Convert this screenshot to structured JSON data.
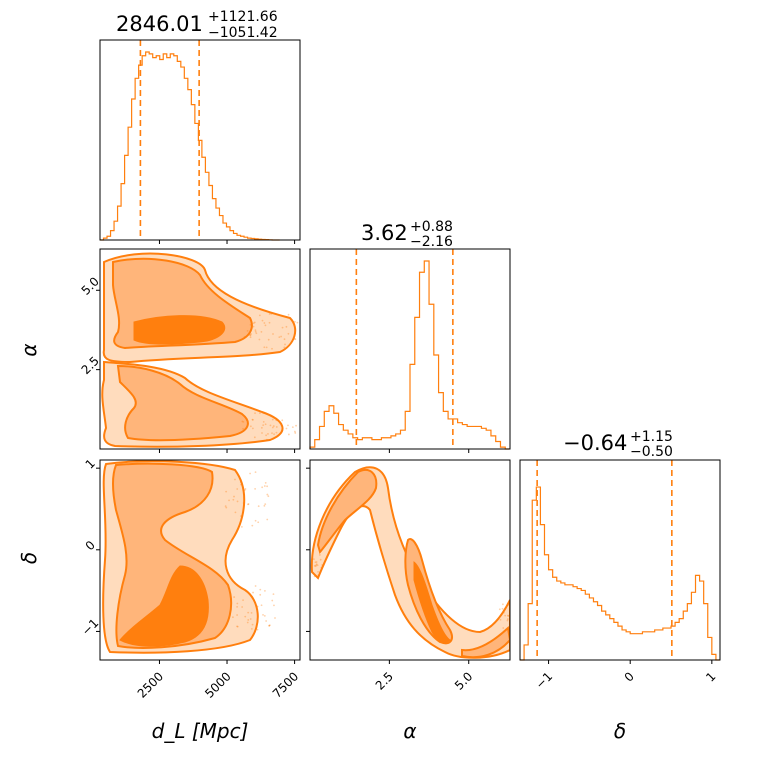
{
  "colors": {
    "accent": "#ff7f0e",
    "fill_light": "#ffdcbd",
    "fill_mid": "#ffb57a",
    "fill_dark": "#ff7f0e"
  },
  "chart_data": {
    "type": "corner",
    "params": [
      {
        "symbol": "d_L",
        "label": "d_L [Mpc]",
        "median": "2846.01",
        "plus": "+1121.66",
        "minus": "−1051.42",
        "range": [
          300,
          7700
        ],
        "ticks": [
          2500,
          5000,
          7500
        ],
        "tick_labels": [
          "2500",
          "5000",
          "7500"
        ],
        "quantiles": [
          1795,
          3968
        ]
      },
      {
        "symbol": "α",
        "label": "α",
        "median": "3.62",
        "plus": "+0.88",
        "minus": "−2.16",
        "range": [
          0,
          6.3
        ],
        "ticks": [
          2.5,
          5.0
        ],
        "tick_labels": [
          "2.5",
          "5.0"
        ],
        "quantiles": [
          1.46,
          4.5
        ]
      },
      {
        "symbol": "δ",
        "label": "δ",
        "median": "−0.64",
        "plus": "+1.15",
        "minus": "−0.50",
        "range": [
          -1.35,
          1.1
        ],
        "ticks": [
          -1,
          0,
          1
        ],
        "tick_labels": [
          "−1",
          "0",
          "1"
        ],
        "quantiles": [
          -1.14,
          0.51
        ]
      }
    ],
    "hist_dL": {
      "x": [
        300,
        430,
        560,
        690,
        820,
        950,
        1080,
        1210,
        1340,
        1470,
        1600,
        1730,
        1860,
        1990,
        2120,
        2250,
        2380,
        2510,
        2640,
        2770,
        2900,
        3030,
        3160,
        3290,
        3420,
        3550,
        3680,
        3810,
        3940,
        4070,
        4200,
        4330,
        4460,
        4590,
        4720,
        4850,
        4980,
        5110,
        5240,
        5370,
        5500,
        5630,
        5760,
        5890,
        6020,
        6150,
        6280,
        6410,
        6540,
        6670,
        6800
      ],
      "y": [
        0,
        0.01,
        0.02,
        0.05,
        0.1,
        0.18,
        0.3,
        0.45,
        0.6,
        0.75,
        0.86,
        0.93,
        0.98,
        1.0,
        0.99,
        0.97,
        0.98,
        0.96,
        0.99,
        0.97,
        0.99,
        0.98,
        0.95,
        0.92,
        0.86,
        0.8,
        0.72,
        0.62,
        0.53,
        0.44,
        0.36,
        0.29,
        0.22,
        0.17,
        0.13,
        0.09,
        0.07,
        0.05,
        0.035,
        0.025,
        0.02,
        0.015,
        0.01,
        0.008,
        0.006,
        0.004,
        0.003,
        0.002,
        0.001,
        0,
        0
      ]
    },
    "hist_alpha": {
      "x": [
        0,
        0.15,
        0.3,
        0.45,
        0.6,
        0.75,
        0.9,
        1.05,
        1.2,
        1.35,
        1.5,
        1.65,
        1.8,
        1.95,
        2.1,
        2.25,
        2.4,
        2.55,
        2.7,
        2.85,
        3.0,
        3.15,
        3.3,
        3.45,
        3.6,
        3.75,
        3.9,
        4.05,
        4.2,
        4.35,
        4.5,
        4.65,
        4.8,
        4.95,
        5.1,
        5.25,
        5.4,
        5.55,
        5.7,
        5.85,
        6.0,
        6.15
      ],
      "y": [
        0.01,
        0.05,
        0.12,
        0.2,
        0.23,
        0.19,
        0.13,
        0.1,
        0.08,
        0.06,
        0.05,
        0.06,
        0.06,
        0.05,
        0.05,
        0.06,
        0.06,
        0.07,
        0.08,
        0.1,
        0.2,
        0.45,
        0.7,
        0.94,
        1.0,
        0.77,
        0.5,
        0.3,
        0.2,
        0.16,
        0.16,
        0.14,
        0.13,
        0.12,
        0.12,
        0.12,
        0.11,
        0.1,
        0.07,
        0.04,
        0.01,
        0
      ]
    },
    "hist_delta": {
      "x": [
        -1.35,
        -1.3,
        -1.25,
        -1.2,
        -1.15,
        -1.1,
        -1.05,
        -1.0,
        -0.95,
        -0.9,
        -0.85,
        -0.8,
        -0.75,
        -0.7,
        -0.65,
        -0.6,
        -0.55,
        -0.5,
        -0.45,
        -0.4,
        -0.35,
        -0.3,
        -0.25,
        -0.2,
        -0.15,
        -0.1,
        -0.05,
        0,
        0.05,
        0.1,
        0.15,
        0.2,
        0.25,
        0.3,
        0.35,
        0.4,
        0.45,
        0.5,
        0.55,
        0.6,
        0.65,
        0.7,
        0.75,
        0.8,
        0.85,
        0.9,
        0.95,
        1.0,
        1.05
      ],
      "y": [
        0,
        0.08,
        0.3,
        0.85,
        0.92,
        0.72,
        0.56,
        0.48,
        0.44,
        0.42,
        0.41,
        0.4,
        0.4,
        0.39,
        0.38,
        0.37,
        0.35,
        0.33,
        0.31,
        0.29,
        0.26,
        0.24,
        0.22,
        0.2,
        0.18,
        0.16,
        0.15,
        0.14,
        0.14,
        0.14,
        0.15,
        0.15,
        0.15,
        0.16,
        0.16,
        0.17,
        0.17,
        0.18,
        0.2,
        0.22,
        0.26,
        0.3,
        0.36,
        0.45,
        0.42,
        0.3,
        0.12,
        0.03,
        0
      ]
    }
  }
}
